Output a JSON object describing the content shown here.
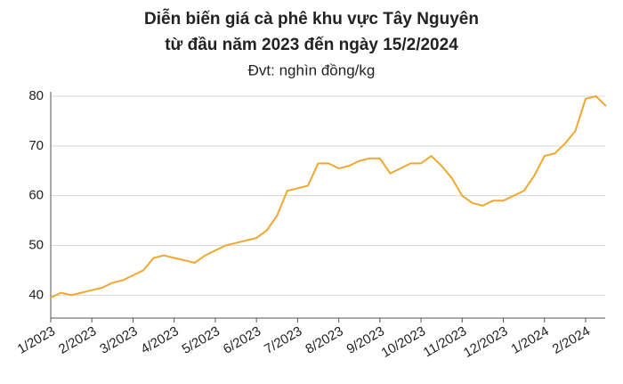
{
  "chart_data": {
    "type": "line",
    "title": "Diễn biến giá cà phê khu vực Tây Nguyên",
    "subtitle": "từ đầu năm 2023 đến ngày 15/2/2024",
    "unit_label": "Đvt: nghìn đồng/kg",
    "categories": [
      "1/2023",
      null,
      null,
      null,
      "2/2023",
      null,
      null,
      null,
      "3/2023",
      null,
      null,
      null,
      "4/2023",
      null,
      null,
      null,
      "5/2023",
      null,
      null,
      null,
      "6/2023",
      null,
      null,
      null,
      "7/2023",
      null,
      null,
      null,
      "8/2023",
      null,
      null,
      null,
      "9/2023",
      null,
      null,
      null,
      "10/2023",
      null,
      null,
      null,
      "11/2023",
      null,
      null,
      null,
      "12/2023",
      null,
      null,
      null,
      "1/2024",
      null,
      null,
      null,
      "2/2024",
      null,
      null
    ],
    "values": [
      39.5,
      40.5,
      40,
      40.5,
      41,
      41.5,
      42.5,
      43,
      44,
      45,
      47.5,
      48,
      47.5,
      47,
      46.5,
      48,
      49,
      50,
      50.5,
      51,
      51.5,
      53,
      56,
      61,
      61.5,
      62,
      66.5,
      66.5,
      65.5,
      66,
      67,
      67.5,
      67.5,
      64.5,
      65.5,
      66.5,
      66.5,
      68,
      66,
      63.5,
      60,
      58.5,
      58,
      59,
      59,
      60,
      61,
      64,
      68,
      68.5,
      70.5,
      73,
      79.5,
      80,
      78
    ],
    "color": "#f0a830",
    "ylim": [
      35.4,
      80.9
    ],
    "yticks": [
      40,
      50,
      60,
      70,
      80
    ],
    "grid": true
  }
}
